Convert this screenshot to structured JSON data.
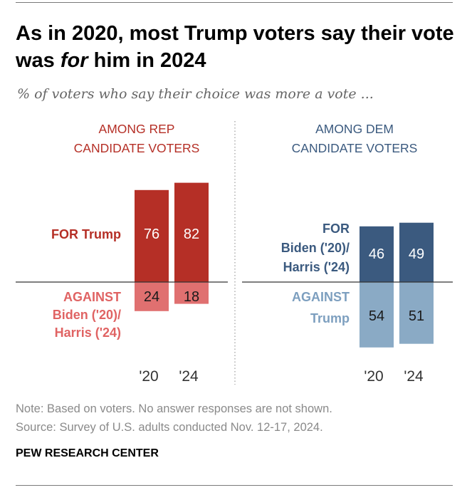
{
  "title": {
    "before": "As in 2020, most Trump voters say their vote was ",
    "emphasis": "for",
    "after": " him in 2024"
  },
  "subtitle": "% of voters who say their choice was more a vote ...",
  "note": "Note: Based on voters. No answer responses are not shown.",
  "source_line": "Source: Survey of U.S. adults conducted Nov. 12-17, 2024.",
  "org": "PEW RESEARCH CENTER",
  "colors": {
    "rep_for": "#b52f26",
    "rep_against": "#e07070",
    "dem_for": "#3b5a7f",
    "dem_against": "#8aaac5",
    "rep_text": "#b52f26",
    "rep_against_text": "#e06363",
    "dem_text": "#3b5a7f",
    "dem_against_text": "#7d9fbf"
  },
  "chart_data": [
    {
      "type": "bar",
      "panel_title": [
        "AMONG REP",
        "CANDIDATE VOTERS"
      ],
      "categories": [
        "'20",
        "'24"
      ],
      "series": [
        {
          "name": "FOR Trump",
          "label_lines": [
            "FOR Trump"
          ],
          "values": [
            76,
            82
          ]
        },
        {
          "name": "AGAINST Biden ('20)/ Harris ('24)",
          "label_lines": [
            "AGAINST",
            "Biden ('20)/",
            "Harris ('24)"
          ],
          "values": [
            24,
            18
          ]
        }
      ]
    },
    {
      "type": "bar",
      "panel_title": [
        "AMONG DEM",
        "CANDIDATE VOTERS"
      ],
      "categories": [
        "'20",
        "'24"
      ],
      "series": [
        {
          "name": "FOR Biden ('20)/ Harris ('24)",
          "label_lines": [
            "FOR",
            "Biden ('20)/",
            "Harris ('24)"
          ],
          "values": [
            46,
            49
          ]
        },
        {
          "name": "AGAINST Trump",
          "label_lines": [
            "AGAINST",
            "Trump"
          ],
          "values": [
            54,
            51
          ]
        }
      ]
    }
  ]
}
